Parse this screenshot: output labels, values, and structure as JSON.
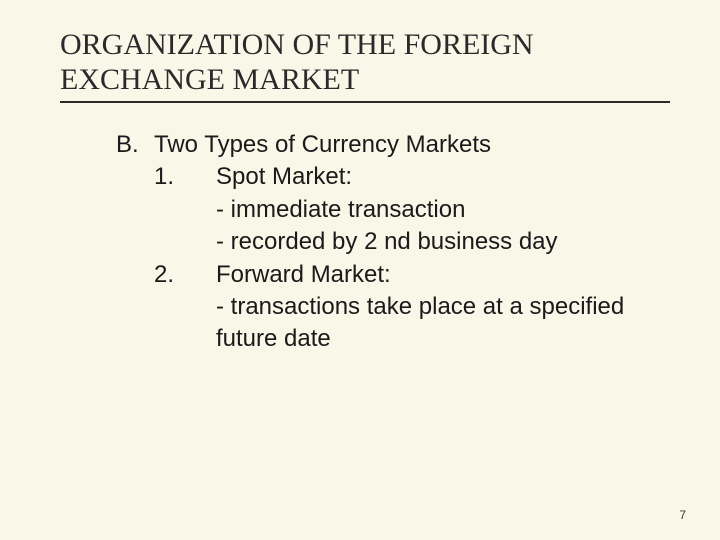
{
  "background_color": "#f8f7e8",
  "title_font": "Times New Roman",
  "body_font": "Arial",
  "title_fontsize": 30,
  "body_fontsize": 24,
  "pagenum_fontsize": 12,
  "title_color": "#2a2a2a",
  "body_color": "#1a1a1a",
  "rule_color": "#2a2a2a",
  "title": "ORGANIZATION OF THE FOREIGN EXCHANGE MARKET",
  "outline": {
    "b_marker": "B.",
    "b_text": "Two Types of Currency Markets",
    "item1_marker": "1.",
    "item1_text": "Spot Market:",
    "item1_sub1": "- immediate transaction",
    "item1_sub2": "- recorded by 2 nd business day",
    "item2_marker": "2.",
    "item2_text": "Forward Market:",
    "item2_sub1": "- transactions take place at a specified future date"
  },
  "page_number": "7"
}
